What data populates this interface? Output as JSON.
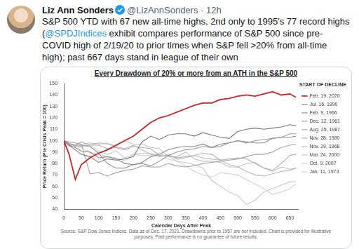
{
  "tweet": {
    "name": "Liz Ann Sonders",
    "meta": "@LizAnnSonders · 12h",
    "text": [
      {
        "text": "S&P 500 YTD with 67 new all-time highs, 2nd only to 1995's 77 record highs (",
        "link": false
      },
      {
        "text": "@SPDJIndices",
        "link": true
      },
      {
        "text": " exhibit compares performance of S&P 500 since pre-COVID high of 2/19/20 to prior times when S&P fell >20% from all-time high); past 667 days stand in league of their own",
        "link": false
      }
    ]
  },
  "chart_data": {
    "type": "line",
    "title": "Every Drawdown of 20% or more from an ATH in the S&P 500",
    "x_label": "Calendar Days After Peak",
    "y_label": "Price Return (Pre Crisis Peak = 100)",
    "legend_title": "START OF DECLINE",
    "source": "Source: S&P Dow Jones Indices. Data as of Dec. 17, 2021. Drawdowns prior to 1957 are not included. Chart is provided for illustrative purposes. Past performance is no guarantee of future results.",
    "legend": "right",
    "grid": false,
    "xlim": [
      0,
      675
    ],
    "xticks": [
      0,
      50,
      100,
      150,
      200,
      250,
      300,
      350,
      400,
      450,
      500,
      550,
      600,
      650
    ],
    "ylim": [
      40,
      150
    ],
    "yticks": [
      40,
      50,
      60,
      70,
      80,
      90,
      100,
      110,
      120,
      130,
      140,
      150
    ],
    "x": [
      0,
      15,
      33,
      50,
      75,
      100,
      125,
      150,
      175,
      200,
      225,
      250,
      275,
      300,
      325,
      350,
      375,
      400,
      425,
      450,
      475,
      500,
      525,
      550,
      575,
      600,
      625,
      650,
      667
    ],
    "series": [
      {
        "name": "Feb. 19, 2020",
        "color": "#d0202a",
        "values": [
          100,
          88,
          66,
          79,
          85,
          89,
          92,
          96,
          100,
          104,
          110,
          116,
          120,
          122,
          125,
          128,
          131,
          133,
          133,
          136,
          137,
          139,
          140,
          139,
          141,
          143,
          140,
          141,
          138
        ]
      },
      {
        "name": "Jul. 16, 1990",
        "color": "#7a7a7a",
        "values": [
          100,
          96,
          92,
          88,
          86,
          81,
          84,
          83,
          84,
          86,
          99,
          104,
          101,
          105,
          106,
          106,
          104,
          107,
          105,
          103,
          102,
          108,
          110,
          111,
          110,
          111,
          112,
          114,
          113
        ]
      },
      {
        "name": "Feb. 9, 1966",
        "color": "#8c8c8c",
        "values": [
          100,
          96,
          94,
          91,
          90,
          85,
          86,
          84,
          80,
          79,
          81,
          86,
          88,
          92,
          94,
          95,
          95,
          97,
          94,
          97,
          98,
          100,
          99,
          98,
          98,
          102,
          103,
          103,
          104
        ]
      },
      {
        "name": "Dec. 12, 1961",
        "color": "#999999",
        "values": [
          100,
          97,
          96,
          96,
          95,
          89,
          80,
          76,
          76,
          79,
          80,
          78,
          82,
          87,
          90,
          92,
          93,
          95,
          94,
          95,
          98,
          100,
          98,
          100,
          101,
          102,
          103,
          106,
          106
        ]
      },
      {
        "name": "Aug. 25, 1987",
        "color": "#a6a6a6",
        "values": [
          100,
          99,
          98,
          97,
          71,
          72,
          69,
          72,
          74,
          75,
          78,
          77,
          77,
          80,
          78,
          77,
          78,
          80,
          81,
          82,
          83,
          84,
          86,
          88,
          88,
          90,
          94,
          96,
          97
        ]
      },
      {
        "name": "Nov. 28, 1980",
        "color": "#b0b0b0",
        "values": [
          100,
          97,
          96,
          99,
          96,
          96,
          93,
          94,
          92,
          95,
          94,
          93,
          87,
          87,
          85,
          86,
          87,
          89,
          88,
          83,
          84,
          85,
          84,
          80,
          76,
          74,
          80,
          87,
          88
        ]
      },
      {
        "name": "Nov. 29, 1968",
        "color": "#b9b9b9",
        "values": [
          100,
          98,
          95,
          95,
          96,
          98,
          97,
          95,
          93,
          96,
          92,
          88,
          86,
          88,
          84,
          85,
          87,
          85,
          84,
          83,
          79,
          77,
          73,
          70,
          69,
          71,
          73,
          74,
          76
        ]
      },
      {
        "name": "Mar. 24, 2000",
        "color": "#c2c2c2",
        "values": [
          100,
          95,
          96,
          96,
          98,
          97,
          98,
          95,
          100,
          97,
          97,
          94,
          93,
          86,
          86,
          90,
          84,
          82,
          82,
          81,
          77,
          77,
          80,
          81,
          76,
          73,
          77,
          75,
          76
        ]
      },
      {
        "name": "Oct. 9, 2007",
        "color": "#cbcbcb",
        "values": [
          100,
          98,
          95,
          95,
          96,
          91,
          88,
          91,
          85,
          88,
          89,
          89,
          87,
          87,
          82,
          81,
          79,
          76,
          65,
          60,
          55,
          52,
          44,
          48,
          55,
          58,
          61,
          64,
          64
        ]
      },
      {
        "name": "Jan. 11, 1973",
        "color": "#d3d3d3",
        "values": [
          100,
          98,
          96,
          94,
          90,
          88,
          86,
          85,
          82,
          88,
          87,
          87,
          89,
          84,
          82,
          78,
          73,
          70,
          68,
          72,
          71,
          70,
          66,
          62,
          58,
          53,
          55,
          58,
          62
        ]
      }
    ]
  }
}
